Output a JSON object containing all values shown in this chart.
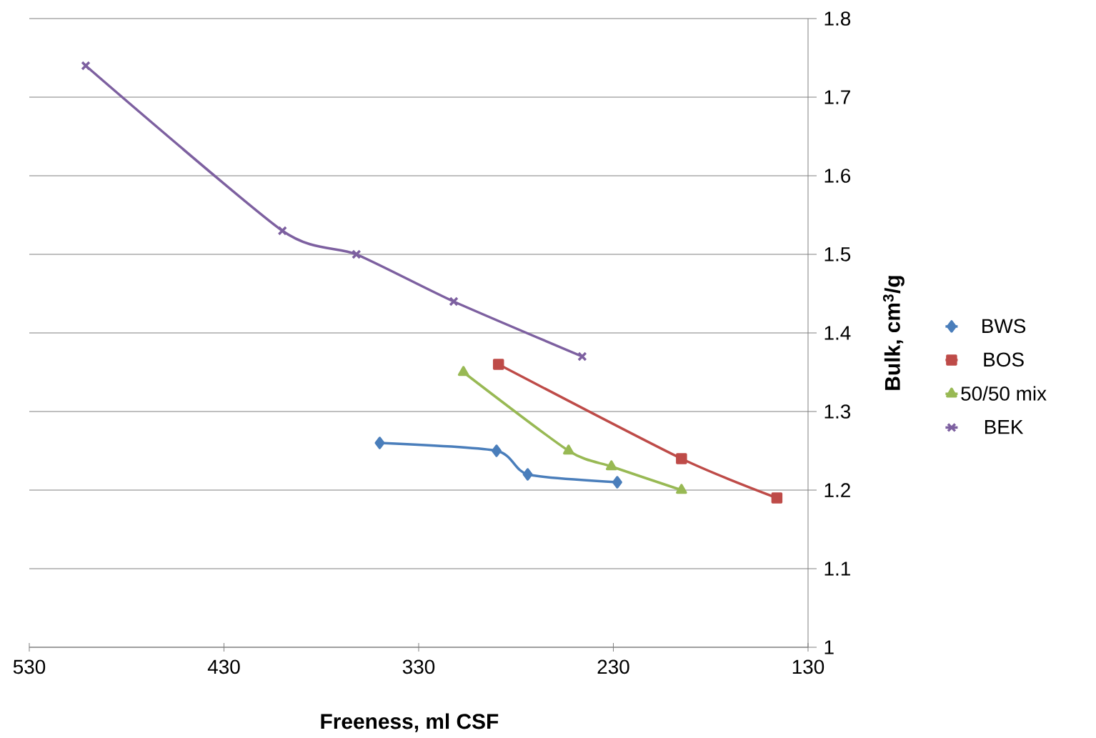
{
  "chart_data": {
    "type": "line",
    "xlabel": "Freeness, ml CSF",
    "ylabel": "Bulk, cm$^{3}$/g",
    "xlim": [
      530,
      130
    ],
    "xticks": [
      530,
      430,
      330,
      230,
      130
    ],
    "ylim": [
      1,
      1.8
    ],
    "yticks": [
      1,
      1.1,
      1.2,
      1.3,
      1.4,
      1.5,
      1.6,
      1.7,
      1.8
    ],
    "grid": "y",
    "legend": "right",
    "series": [
      {
        "name": "BWS",
        "color": "#4a7ebb",
        "marker": "diamond",
        "x": [
          350,
          290,
          274,
          228
        ],
        "values": [
          1.26,
          1.25,
          1.22,
          1.21
        ]
      },
      {
        "name": "BOS",
        "color": "#be4b48",
        "marker": "square",
        "x": [
          289,
          195,
          146
        ],
        "values": [
          1.36,
          1.24,
          1.19
        ]
      },
      {
        "name": "50/50 mix",
        "color": "#98b954",
        "marker": "triangle",
        "x": [
          307,
          253,
          231,
          195
        ],
        "values": [
          1.35,
          1.25,
          1.23,
          1.2
        ]
      },
      {
        "name": "BEK",
        "color": "#7d60a0",
        "marker": "cross",
        "x": [
          501,
          400,
          362,
          312,
          246
        ],
        "values": [
          1.74,
          1.53,
          1.5,
          1.44,
          1.37
        ]
      }
    ]
  }
}
